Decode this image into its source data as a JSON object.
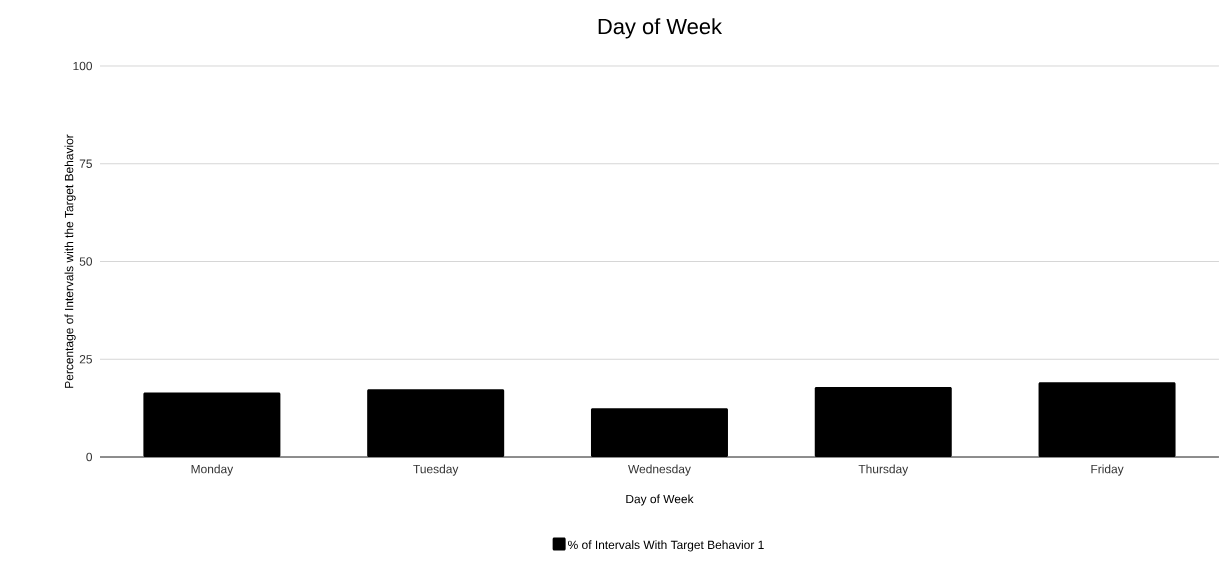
{
  "chart_data": {
    "type": "bar",
    "title": "Day of Week",
    "xlabel": "Day of Week",
    "ylabel": "Percentage of Intervals with the Target Behavior",
    "categories": [
      "Monday",
      "Tuesday",
      "Wednesday",
      "Thursday",
      "Friday"
    ],
    "series": [
      {
        "name": "% of Intervals With Target Behavior 1",
        "color": "#000000",
        "values": [
          16.5,
          17.3,
          12.5,
          17.9,
          19.1
        ]
      }
    ],
    "ylim": [
      0,
      100
    ],
    "yticks": [
      0,
      25,
      50,
      75,
      100
    ],
    "grid": "y",
    "legend": "bottom"
  }
}
